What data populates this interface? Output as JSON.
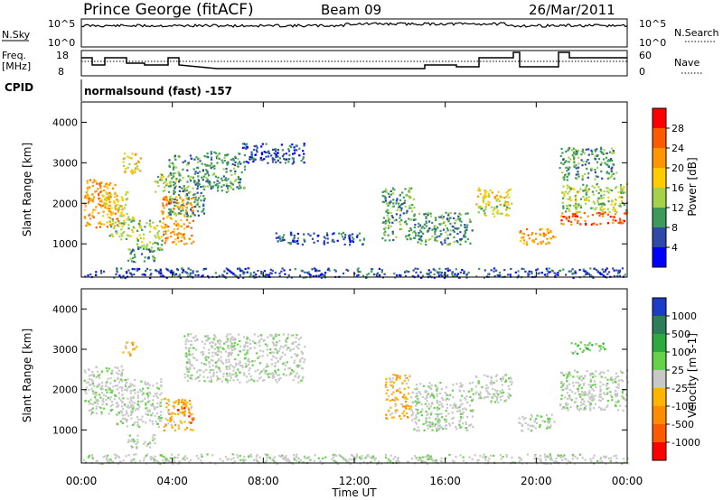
{
  "header": {
    "station": "Prince George (fitACF)",
    "beam": "Beam 09",
    "date": "26/Mar/2011"
  },
  "sky_panel": {
    "left_label": "N.Sky",
    "left_ticks": [
      "10^5",
      "10^0"
    ],
    "right_label": "N.Search",
    "right_ticks": [
      "10^5",
      "10^0"
    ]
  },
  "freq_panel": {
    "left_label_1": "Freq.",
    "left_label_2": "[MHz]",
    "left_ticks": [
      "18",
      "8"
    ],
    "right_label": "Nave",
    "right_ticks": [
      "60",
      "0"
    ]
  },
  "cpid": {
    "label": "CPID",
    "program": "normalsound (fast) -157"
  },
  "power_colorbar": {
    "label": "Power [dB]",
    "ticks": [
      "28",
      "24",
      "20",
      "16",
      "12",
      "8",
      "4"
    ],
    "colors": [
      "#ff0000",
      "#ff5a00",
      "#ff9600",
      "#ffcc00",
      "#a6d24a",
      "#3c9a5a",
      "#2c4aa6",
      "#0000ff"
    ]
  },
  "velocity_colorbar": {
    "label": "Velocity [m s-1]",
    "ticks": [
      "1000",
      "500",
      "100",
      "25",
      "-25",
      "-100",
      "-500",
      "-1000"
    ],
    "colors": [
      "#1a3cc8",
      "#2e7d5a",
      "#2eaa3c",
      "#66d24a",
      "#c8c8c8",
      "#ffb400",
      "#ff8c00",
      "#ff5a00",
      "#ff0000"
    ]
  },
  "chart_data": [
    {
      "type": "heatmap",
      "name_panel": "power",
      "ylabel": "Slant Range [km]",
      "xlabel": "Time UT",
      "x_ticks": [
        "00:00",
        "04:00",
        "08:00",
        "12:00",
        "16:00",
        "20:00",
        "00:00"
      ],
      "xlim": [
        0,
        24
      ],
      "y_ticks": [
        "1000",
        "2000",
        "3000",
        "4000"
      ],
      "ylim": [
        180,
        4500
      ],
      "regions": [
        {
          "x": [
            0.1,
            1.6
          ],
          "y": [
            1400,
            2600
          ],
          "level": 5
        },
        {
          "x": [
            0.9,
            2.0
          ],
          "y": [
            1700,
            2300
          ],
          "level": 4
        },
        {
          "x": [
            1.2,
            2.3
          ],
          "y": [
            1100,
            1700
          ],
          "level": 3
        },
        {
          "x": [
            1.8,
            2.6
          ],
          "y": [
            2750,
            3250
          ],
          "level": 4
        },
        {
          "x": [
            2.4,
            3.6
          ],
          "y": [
            850,
            1600
          ],
          "level": 3
        },
        {
          "x": [
            2.0,
            3.2
          ],
          "y": [
            550,
            900
          ],
          "level": 2
        },
        {
          "x": [
            3.2,
            4.2
          ],
          "y": [
            2300,
            2750
          ],
          "level": 3
        },
        {
          "x": [
            3.5,
            4.9
          ],
          "y": [
            1000,
            2200
          ],
          "level": 5
        },
        {
          "x": [
            3.8,
            5.4
          ],
          "y": [
            1700,
            3200
          ],
          "level": 2
        },
        {
          "x": [
            5.4,
            7.2
          ],
          "y": [
            2300,
            3300
          ],
          "level": 2
        },
        {
          "x": [
            7.0,
            9.8
          ],
          "y": [
            3000,
            3500
          ],
          "level": 1
        },
        {
          "x": [
            8.5,
            12.4
          ],
          "y": [
            1000,
            1300
          ],
          "level": 1
        },
        {
          "x": [
            13.2,
            14.6
          ],
          "y": [
            1100,
            2400
          ],
          "level": 2
        },
        {
          "x": [
            14.6,
            17.2
          ],
          "y": [
            1000,
            1800
          ],
          "level": 2
        },
        {
          "x": [
            17.3,
            18.9
          ],
          "y": [
            1900,
            2400
          ],
          "level": 4
        },
        {
          "x": [
            17.4,
            18.8
          ],
          "y": [
            1700,
            2000
          ],
          "level": 3
        },
        {
          "x": [
            19.2,
            20.8
          ],
          "y": [
            1000,
            1400
          ],
          "level": 5
        },
        {
          "x": [
            21.0,
            24.0
          ],
          "y": [
            1500,
            1800
          ],
          "level": 6
        },
        {
          "x": [
            21.0,
            24.0
          ],
          "y": [
            1800,
            2500
          ],
          "level": 3
        },
        {
          "x": [
            21.0,
            23.5
          ],
          "y": [
            2600,
            3400
          ],
          "level": 2
        },
        {
          "x": [
            0.0,
            24.0
          ],
          "y": [
            180,
            420
          ],
          "level": 1
        }
      ]
    },
    {
      "type": "heatmap",
      "name_panel": "velocity",
      "ylabel": "Slant Range [km]",
      "xlabel": "Time UT",
      "x_ticks": [
        "00:00",
        "04:00",
        "08:00",
        "12:00",
        "16:00",
        "20:00",
        "00:00"
      ],
      "xlim": [
        0,
        24
      ],
      "y_ticks": [
        "1000",
        "2000",
        "3000",
        "4000"
      ],
      "ylim": [
        180,
        4500
      ],
      "regions": [
        {
          "x": [
            0.1,
            1.8
          ],
          "y": [
            1400,
            2600
          ],
          "level": 4
        },
        {
          "x": [
            1.5,
            3.5
          ],
          "y": [
            1100,
            2300
          ],
          "level": 4
        },
        {
          "x": [
            2.0,
            3.2
          ],
          "y": [
            550,
            900
          ],
          "level": 4
        },
        {
          "x": [
            1.8,
            2.4
          ],
          "y": [
            2850,
            3200
          ],
          "level": 6
        },
        {
          "x": [
            3.6,
            4.9
          ],
          "y": [
            1000,
            1800
          ],
          "level": 6
        },
        {
          "x": [
            4.2,
            4.9
          ],
          "y": [
            1200,
            1600
          ],
          "level": 7
        },
        {
          "x": [
            4.5,
            9.8
          ],
          "y": [
            2200,
            3400
          ],
          "level": 4
        },
        {
          "x": [
            13.3,
            14.5
          ],
          "y": [
            1300,
            2400
          ],
          "level": 6
        },
        {
          "x": [
            14.5,
            17.2
          ],
          "y": [
            1000,
            2200
          ],
          "level": 4
        },
        {
          "x": [
            17.3,
            18.9
          ],
          "y": [
            1700,
            2400
          ],
          "level": 4
        },
        {
          "x": [
            19.2,
            20.8
          ],
          "y": [
            1000,
            1400
          ],
          "level": 4
        },
        {
          "x": [
            21.0,
            24.0
          ],
          "y": [
            1500,
            2500
          ],
          "level": 4
        },
        {
          "x": [
            21.5,
            23.0
          ],
          "y": [
            2900,
            3200
          ],
          "level": 3
        },
        {
          "x": [
            0.0,
            24.0
          ],
          "y": [
            180,
            420
          ],
          "level": 4
        }
      ]
    }
  ]
}
